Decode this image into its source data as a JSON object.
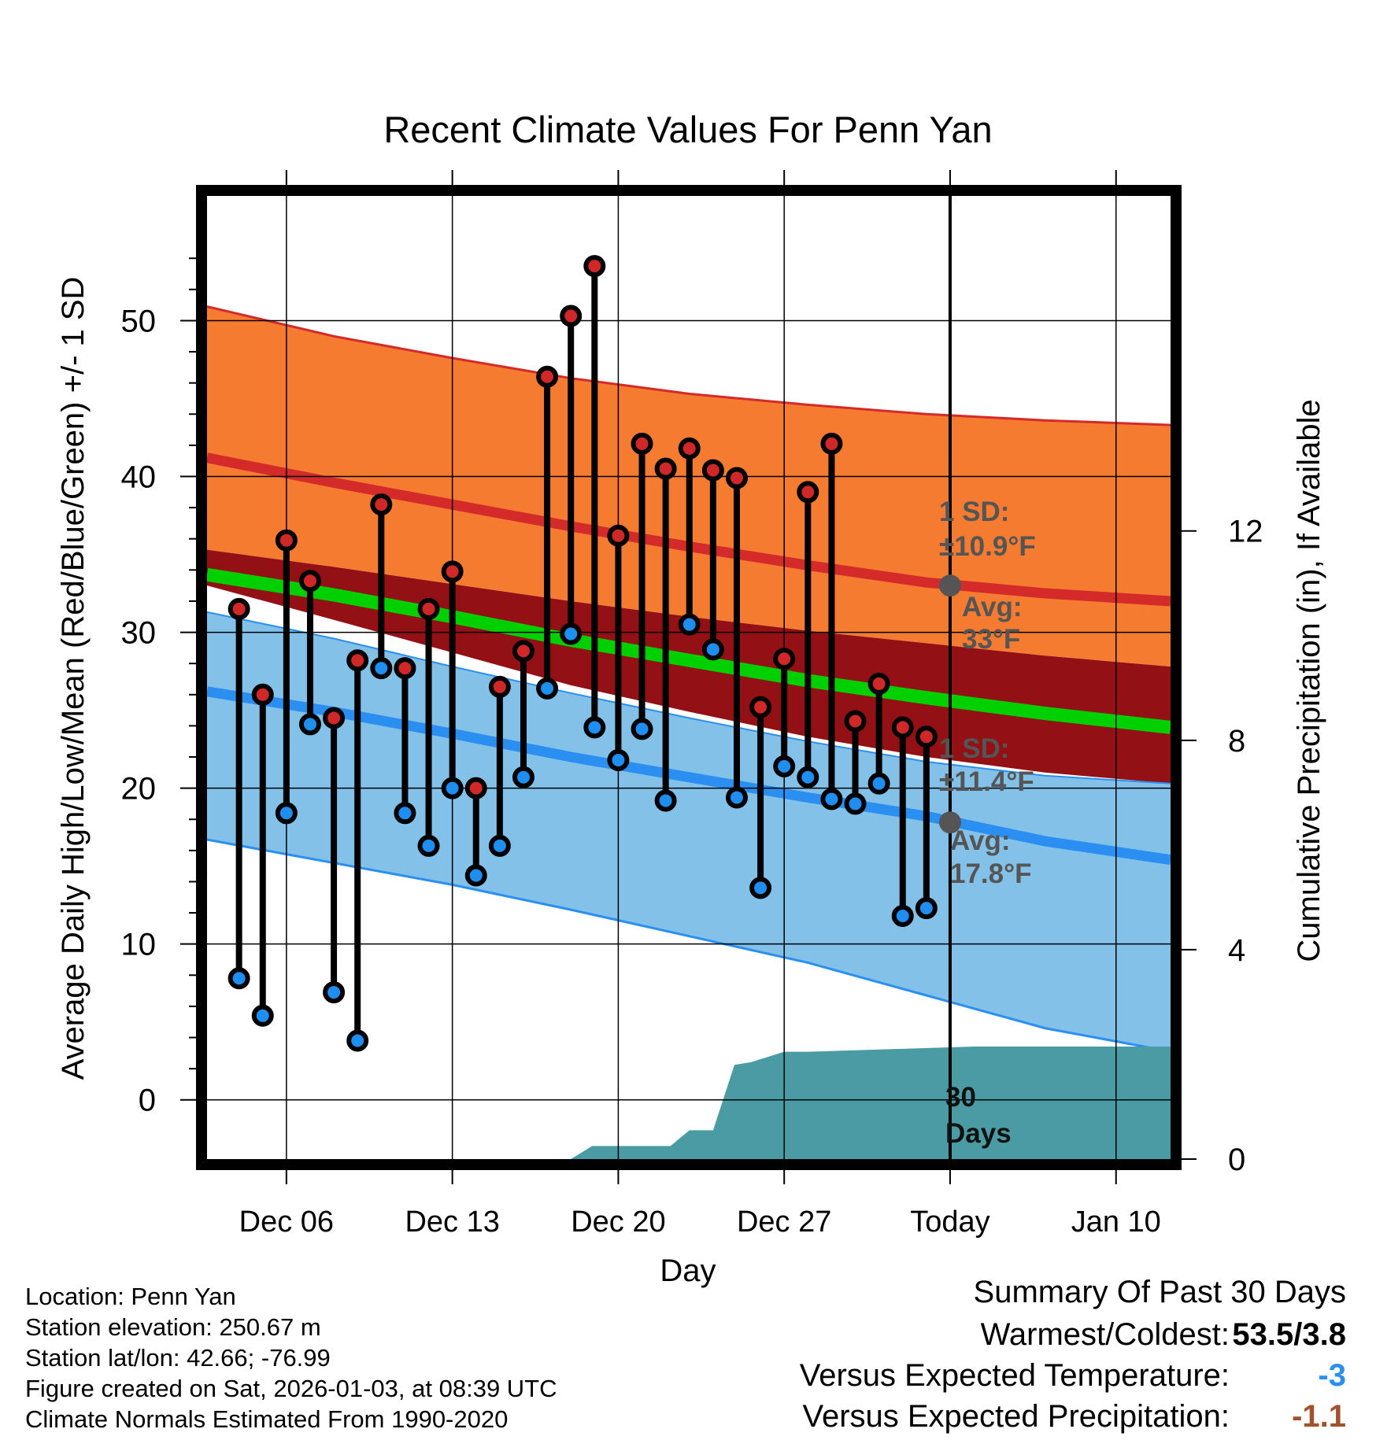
{
  "chart_data": {
    "type": "line",
    "title": "Recent Climate Values For Penn Yan",
    "xlabel": "Day",
    "ylabel": "Average Daily High/Low/Mean (Red/Blue/Green) +/- 1 SD",
    "y2label": "Cumulative Precipitation (in), If Available",
    "ylim": [
      -3.8,
      58
    ],
    "y2lim": [
      0,
      18.4
    ],
    "xlim": [
      -0.35,
      40.3
    ],
    "x_ticks": [
      {
        "x": 3,
        "label": "Dec 06"
      },
      {
        "x": 10,
        "label": "Dec 13"
      },
      {
        "x": 17,
        "label": "Dec 20"
      },
      {
        "x": 24,
        "label": "Dec 27"
      },
      {
        "x": 31,
        "label": "Today"
      },
      {
        "x": 38,
        "label": "Jan 10"
      }
    ],
    "y_ticks": [
      "0",
      "10",
      "20",
      "30",
      "40",
      "50"
    ],
    "y_tick_values": [
      0,
      10,
      20,
      30,
      40,
      50
    ],
    "y2_ticks": [
      "0",
      "4",
      "8",
      "12"
    ],
    "y2_tick_values": [
      0,
      4,
      8,
      12
    ],
    "normals": {
      "x": [
        -0.35,
        5,
        10,
        15,
        20,
        25,
        30,
        35,
        40.3
      ],
      "high_mean": [
        41.2,
        39.6,
        38.2,
        36.8,
        35.5,
        34.3,
        33.2,
        32.5,
        32.0
      ],
      "high_upper": [
        50.9,
        49.0,
        47.6,
        46.3,
        45.3,
        44.6,
        44.0,
        43.6,
        43.3
      ],
      "high_lower": [
        35.3,
        34.2,
        33.1,
        32.0,
        31.0,
        30.1,
        29.3,
        28.5,
        27.8
      ],
      "mean": [
        33.7,
        32.4,
        31.0,
        29.5,
        28.2,
        26.9,
        25.8,
        24.8,
        23.9
      ],
      "mean_lower": [
        33.0,
        30.8,
        28.7,
        26.6,
        24.9,
        23.3,
        22.0,
        21.0,
        20.3
      ],
      "low_mean": [
        26.2,
        24.9,
        23.5,
        22.0,
        20.7,
        19.4,
        18.2,
        16.6,
        15.4
      ],
      "low_upper": [
        31.3,
        29.6,
        27.8,
        26.1,
        24.5,
        23.0,
        21.7,
        20.8,
        20.3
      ],
      "low_lower": [
        16.7,
        15.2,
        13.8,
        12.2,
        10.5,
        8.8,
        6.7,
        4.6,
        3.1
      ]
    },
    "series": [
      {
        "name": "High",
        "x": [
          1,
          2,
          3,
          4,
          5,
          6,
          7,
          8,
          9,
          10,
          11,
          12,
          13,
          14,
          15,
          16,
          17,
          18,
          19,
          20,
          21,
          22,
          23,
          24,
          25,
          26,
          27,
          28,
          29,
          30
        ],
        "values": [
          31.5,
          26.0,
          35.9,
          33.3,
          24.5,
          28.2,
          38.2,
          27.7,
          31.5,
          33.9,
          20.0,
          26.5,
          28.8,
          46.4,
          50.3,
          53.5,
          36.2,
          42.1,
          40.5,
          41.8,
          40.4,
          39.9,
          25.2,
          28.3,
          39.0,
          42.1,
          24.3,
          26.7,
          23.9,
          23.3
        ]
      },
      {
        "name": "Low",
        "x": [
          1,
          2,
          3,
          4,
          5,
          6,
          7,
          8,
          9,
          10,
          11,
          12,
          13,
          14,
          15,
          16,
          17,
          18,
          19,
          20,
          21,
          22,
          23,
          24,
          25,
          26,
          27,
          28,
          29,
          30
        ],
        "values": [
          7.8,
          5.4,
          18.4,
          24.1,
          6.9,
          3.8,
          27.7,
          18.4,
          16.3,
          20.0,
          14.4,
          16.3,
          20.7,
          26.4,
          29.9,
          23.9,
          21.8,
          23.8,
          19.2,
          30.5,
          28.9,
          19.4,
          13.6,
          21.4,
          20.7,
          19.3,
          19.0,
          20.3,
          11.8,
          12.3
        ]
      },
      {
        "name": "Cumulative Precipitation",
        "x": [
          15,
          15.9,
          17,
          18,
          19.2,
          20,
          21,
          21.9,
          22.6,
          24,
          25,
          32,
          40.3
        ],
        "values": [
          0,
          0.25,
          0.25,
          0.25,
          0.25,
          0.55,
          0.55,
          1.8,
          1.85,
          2.05,
          2.05,
          2.15,
          2.15
        ]
      }
    ],
    "annotations": {
      "high_sd": "1 SD:",
      "high_sd_value": "±10.9°F",
      "high_avg": "Avg:",
      "high_avg_value": "33°F",
      "low_sd": "1 SD:",
      "low_sd_value": "±11.4°F",
      "low_avg": "Avg:",
      "low_avg_value": "17.8°F",
      "precip_period": "30",
      "precip_period_unit": "Days",
      "today_x": 31,
      "high_avg_marker": 33.0,
      "low_avg_marker": 17.8
    },
    "colors": {
      "high_band": "#f47b30",
      "high_line": "#d42a2a",
      "mean_band": "#931014",
      "mean_line": "#00d000",
      "low_band": "#83c1e8",
      "low_line": "#2a8ff0",
      "precip_fill": "#4a9ba4",
      "high_dot": "#d02828",
      "low_dot": "#1e8ef0",
      "annotation_text": "#555555"
    }
  },
  "footer": {
    "location": "Location: Penn Yan",
    "elevation": "Station elevation: 250.67 m",
    "latlon": "Station lat/lon: 42.66; -76.99",
    "created": "Figure created on Sat, 2026-01-03, at 08:39 UTC",
    "normals": "Climate Normals Estimated From 1990-2020"
  },
  "summary": {
    "heading": "Summary Of Past 30 Days",
    "warmest_coldest_label": "Warmest/Coldest:",
    "warmest_coldest_value": "53.5/3.8",
    "temp_label": "Versus Expected Temperature:",
    "temp_value": "-3",
    "temp_color": "#2a8ff0",
    "precip_label": "Versus Expected Precipitation:",
    "precip_value": "-1.1",
    "precip_color": "#a0522d"
  }
}
